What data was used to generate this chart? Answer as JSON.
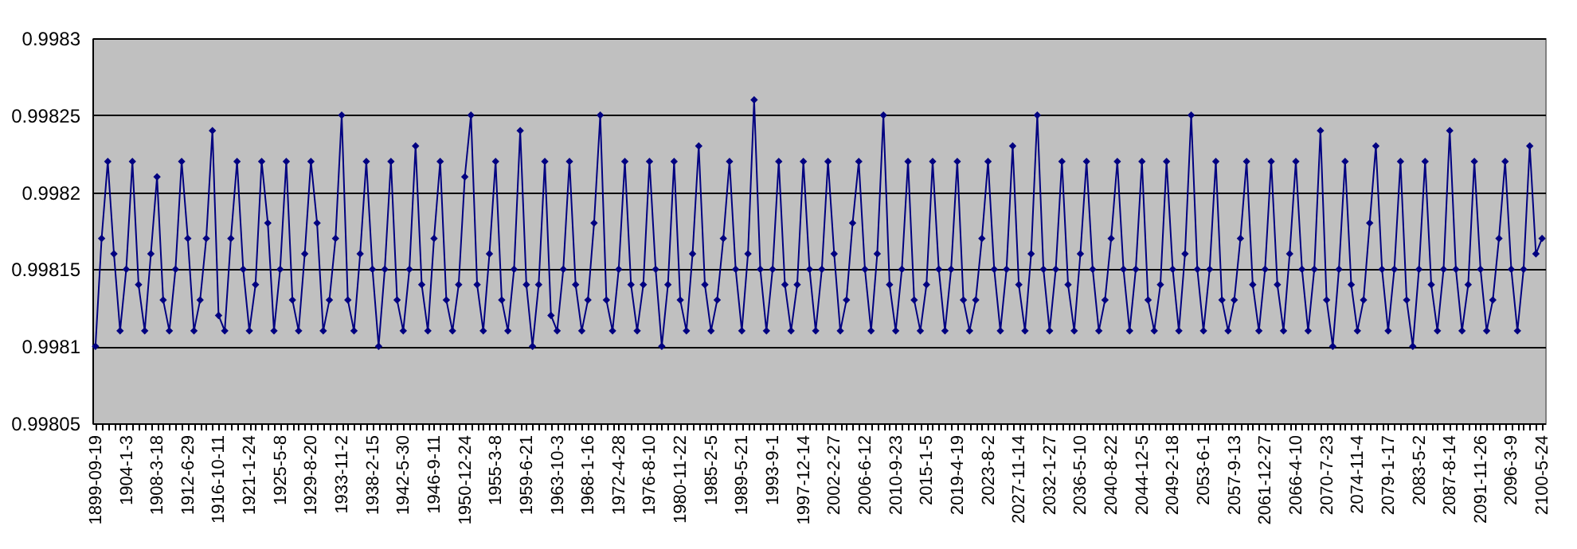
{
  "chart_data": {
    "type": "line",
    "categories": [
      "1899-09-19",
      null,
      null,
      null,
      null,
      "1904-1-3",
      null,
      null,
      null,
      null,
      "1908-3-18",
      null,
      null,
      null,
      null,
      "1912-6-29",
      null,
      null,
      null,
      null,
      "1916-10-11",
      null,
      null,
      null,
      null,
      "1921-1-24",
      null,
      null,
      null,
      null,
      "1925-5-8",
      null,
      null,
      null,
      null,
      "1929-8-20",
      null,
      null,
      null,
      null,
      "1933-11-2",
      null,
      null,
      null,
      null,
      "1938-2-15",
      null,
      null,
      null,
      null,
      "1942-5-30",
      null,
      null,
      null,
      null,
      "1946-9-11",
      null,
      null,
      null,
      null,
      "1950-12-24",
      null,
      null,
      null,
      null,
      "1955-3-8",
      null,
      null,
      null,
      null,
      "1959-6-21",
      null,
      null,
      null,
      null,
      "1963-10-3",
      null,
      null,
      null,
      null,
      "1968-1-16",
      null,
      null,
      null,
      null,
      "1972-4-28",
      null,
      null,
      null,
      null,
      "1976-8-10",
      null,
      null,
      null,
      null,
      "1980-11-22",
      null,
      null,
      null,
      null,
      "1985-2-5",
      null,
      null,
      null,
      null,
      "1989-5-21",
      null,
      null,
      null,
      null,
      "1993-9-1",
      null,
      null,
      null,
      null,
      "1997-12-14",
      null,
      null,
      null,
      null,
      "2002-2-27",
      null,
      null,
      null,
      null,
      "2006-6-12",
      null,
      null,
      null,
      null,
      "2010-9-23",
      null,
      null,
      null,
      null,
      "2015-1-5",
      null,
      null,
      null,
      null,
      "2019-4-19",
      null,
      null,
      null,
      null,
      "2023-8-2",
      null,
      null,
      null,
      null,
      "2027-11-14",
      null,
      null,
      null,
      null,
      "2032-1-27",
      null,
      null,
      null,
      null,
      "2036-5-10",
      null,
      null,
      null,
      null,
      "2040-8-22",
      null,
      null,
      null,
      null,
      "2044-12-5",
      null,
      null,
      null,
      null,
      "2049-2-18",
      null,
      null,
      null,
      null,
      "2053-6-1",
      null,
      null,
      null,
      null,
      "2057-9-13",
      null,
      null,
      null,
      null,
      "2061-12-27",
      null,
      null,
      null,
      null,
      "2066-4-10",
      null,
      null,
      null,
      null,
      "2070-7-23",
      null,
      null,
      null,
      null,
      "2074-11-4",
      null,
      null,
      null,
      null,
      "2079-1-17",
      null,
      null,
      null,
      null,
      "2083-5-2",
      null,
      null,
      null,
      null,
      "2087-8-14",
      null,
      null,
      null,
      null,
      "2091-11-26",
      null,
      null,
      null,
      null,
      "2096-3-9",
      null,
      null,
      null,
      null,
      "2100-5-24"
    ],
    "series": [
      {
        "color": "#000080",
        "values": [
          0.9981,
          0.99817,
          0.99822,
          0.99816,
          0.99811,
          0.99815,
          0.99822,
          0.99814,
          0.99811,
          0.99816,
          0.99821,
          0.99813,
          0.99811,
          0.99815,
          0.99822,
          0.99817,
          0.99811,
          0.99813,
          0.99817,
          0.99824,
          0.99812,
          0.99811,
          0.99817,
          0.99822,
          0.99815,
          0.99811,
          0.99814,
          0.99822,
          0.99818,
          0.99811,
          0.99815,
          0.99822,
          0.99813,
          0.99811,
          0.99816,
          0.99822,
          0.99818,
          0.99811,
          0.99813,
          0.99817,
          0.99825,
          0.99813,
          0.99811,
          0.99816,
          0.99822,
          0.99815,
          0.9981,
          0.99815,
          0.99822,
          0.99813,
          0.99811,
          0.99815,
          0.99823,
          0.99814,
          0.99811,
          0.99817,
          0.99822,
          0.99813,
          0.99811,
          0.99814,
          0.99821,
          0.99825,
          0.99814,
          0.99811,
          0.99816,
          0.99822,
          0.99813,
          0.99811,
          0.99815,
          0.99824,
          0.99814,
          0.9981,
          0.99814,
          0.99822,
          0.99812,
          0.99811,
          0.99815,
          0.99822,
          0.99814,
          0.99811,
          0.99813,
          0.99818,
          0.99825,
          0.99813,
          0.99811,
          0.99815,
          0.99822,
          0.99814,
          0.99811,
          0.99814,
          0.99822,
          0.99815,
          0.9981,
          0.99814,
          0.99822,
          0.99813,
          0.99811,
          0.99816,
          0.99823,
          0.99814,
          0.99811,
          0.99813,
          0.99817,
          0.99822,
          0.99815,
          0.99811,
          0.99816,
          0.99826,
          0.99815,
          0.99811,
          0.99815,
          0.99822,
          0.99814,
          0.99811,
          0.99814,
          0.99822,
          0.99815,
          0.99811,
          0.99815,
          0.99822,
          0.99816,
          0.99811,
          0.99813,
          0.99818,
          0.99822,
          0.99815,
          0.99811,
          0.99816,
          0.99825,
          0.99814,
          0.99811,
          0.99815,
          0.99822,
          0.99813,
          0.99811,
          0.99814,
          0.99822,
          0.99815,
          0.99811,
          0.99815,
          0.99822,
          0.99813,
          0.99811,
          0.99813,
          0.99817,
          0.99822,
          0.99815,
          0.99811,
          0.99815,
          0.99823,
          0.99814,
          0.99811,
          0.99816,
          0.99825,
          0.99815,
          0.99811,
          0.99815,
          0.99822,
          0.99814,
          0.99811,
          0.99816,
          0.99822,
          0.99815,
          0.99811,
          0.99813,
          0.99817,
          0.99822,
          0.99815,
          0.99811,
          0.99815,
          0.99822,
          0.99813,
          0.99811,
          0.99814,
          0.99822,
          0.99815,
          0.99811,
          0.99816,
          0.99825,
          0.99815,
          0.99811,
          0.99815,
          0.99822,
          0.99813,
          0.99811,
          0.99813,
          0.99817,
          0.99822,
          0.99814,
          0.99811,
          0.99815,
          0.99822,
          0.99814,
          0.99811,
          0.99816,
          0.99822,
          0.99815,
          0.99811,
          0.99815,
          0.99824,
          0.99813,
          0.9981,
          0.99815,
          0.99822,
          0.99814,
          0.99811,
          0.99813,
          0.99818,
          0.99823,
          0.99815,
          0.99811,
          0.99815,
          0.99822,
          0.99813,
          0.9981,
          0.99815,
          0.99822,
          0.99814,
          0.99811,
          0.99815,
          0.99824,
          0.99815,
          0.99811,
          0.99814,
          0.99822,
          0.99815,
          0.99811,
          0.99813,
          0.99817,
          0.99822,
          0.99815,
          0.99811,
          0.99815,
          0.99823,
          0.99816,
          0.99817
        ]
      }
    ],
    "ylim": [
      0.99805,
      0.9983
    ],
    "yticks": [
      0.99805,
      0.9981,
      0.99815,
      0.9982,
      0.99825,
      0.9983
    ],
    "grid": "y",
    "marker": "diamond",
    "line_style": "solid"
  }
}
